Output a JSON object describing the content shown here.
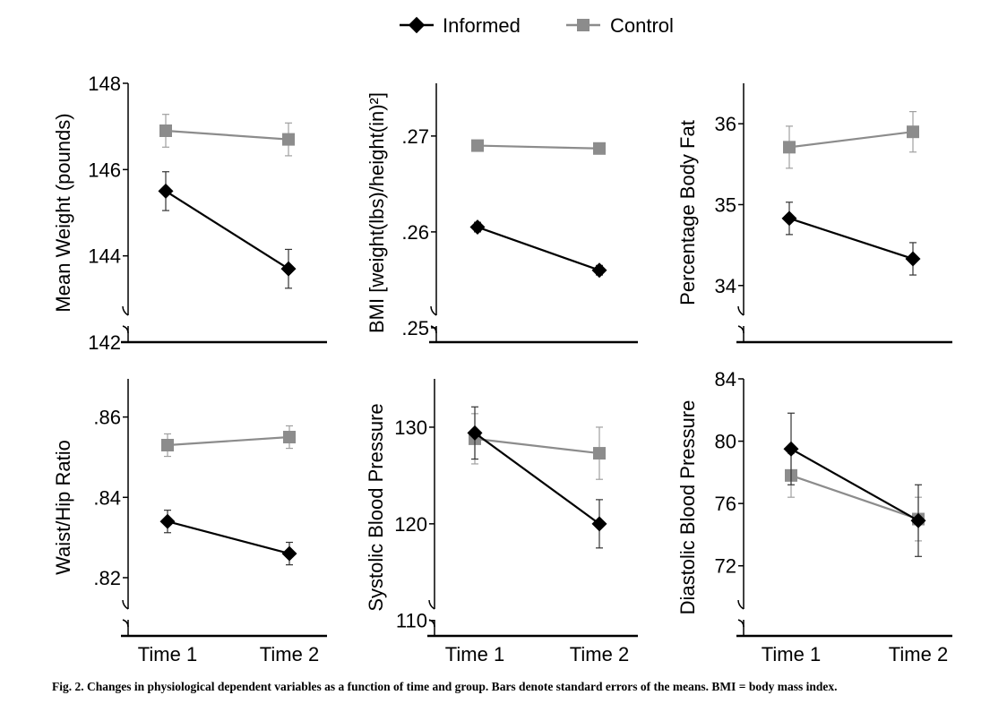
{
  "legend": {
    "placement": "top-center",
    "items": [
      {
        "label": "Informed",
        "color": "#000000",
        "marker": "diamond"
      },
      {
        "label": "Control",
        "color": "#8c8c8c",
        "marker": "square"
      }
    ]
  },
  "chart_data": [
    {
      "type": "line",
      "ylabel": "Mean Weight (pounds)",
      "categories": [
        "Time 1",
        "Time 2"
      ],
      "x_tick_labels_shown": false,
      "ylim": [
        142,
        148
      ],
      "y_ticks": [
        142,
        144,
        146,
        148
      ],
      "y_tick_labels": [
        "142",
        "144",
        "146",
        "148"
      ],
      "axis_break": true,
      "series": [
        {
          "name": "Informed",
          "values": [
            145.5,
            143.7
          ],
          "se": [
            0.45,
            0.45
          ]
        },
        {
          "name": "Control",
          "values": [
            146.9,
            146.7
          ],
          "se": [
            0.38,
            0.38
          ]
        }
      ]
    },
    {
      "type": "line",
      "ylabel": "BMI [weight(lbs)/height(in)²]",
      "categories": [
        "Time 1",
        "Time 2"
      ],
      "x_tick_labels_shown": false,
      "ylim": [
        0.2485,
        0.2755
      ],
      "y_ticks": [
        0.25,
        0.26,
        0.27
      ],
      "y_tick_labels": [
        ".25",
        ".26",
        ".27"
      ],
      "axis_break": true,
      "series": [
        {
          "name": "Informed",
          "values": [
            0.2605,
            0.256
          ],
          "se": [
            0.0005,
            0.0005
          ]
        },
        {
          "name": "Control",
          "values": [
            0.269,
            0.2687
          ],
          "se": [
            0.0005,
            0.0005
          ]
        }
      ]
    },
    {
      "type": "line",
      "ylabel": "Percentage Body Fat",
      "categories": [
        "Time 1",
        "Time 2"
      ],
      "x_tick_labels_shown": false,
      "ylim": [
        33.3,
        36.5
      ],
      "y_ticks": [
        34,
        35,
        36
      ],
      "y_tick_labels": [
        "34",
        "35",
        "36"
      ],
      "axis_break": true,
      "series": [
        {
          "name": "Informed",
          "values": [
            34.83,
            34.33
          ],
          "se": [
            0.2,
            0.2
          ]
        },
        {
          "name": "Control",
          "values": [
            35.71,
            35.9
          ],
          "se": [
            0.26,
            0.25
          ]
        }
      ]
    },
    {
      "type": "line",
      "ylabel": "Waist/Hip Ratio",
      "categories": [
        "Time 1",
        "Time 2"
      ],
      "x_tick_labels_shown": true,
      "ylim": [
        0.8055,
        0.8695
      ],
      "y_ticks": [
        0.82,
        0.84,
        0.86
      ],
      "y_tick_labels": [
        ".82",
        ".84",
        ".86"
      ],
      "axis_break": true,
      "series": [
        {
          "name": "Informed",
          "values": [
            0.834,
            0.826
          ],
          "se": [
            0.0028,
            0.0028
          ]
        },
        {
          "name": "Control",
          "values": [
            0.853,
            0.855
          ],
          "se": [
            0.0028,
            0.0028
          ]
        }
      ]
    },
    {
      "type": "line",
      "ylabel": "Systolic Blood Pressure",
      "categories": [
        "Time 1",
        "Time 2"
      ],
      "x_tick_labels_shown": true,
      "ylim": [
        108.4,
        135
      ],
      "y_ticks": [
        110,
        120,
        130
      ],
      "y_tick_labels": [
        "110",
        "120",
        "130"
      ],
      "axis_break": true,
      "series": [
        {
          "name": "Informed",
          "values": [
            129.4,
            120
          ],
          "se": [
            2.7,
            2.5
          ]
        },
        {
          "name": "Control",
          "values": [
            128.8,
            127.3
          ],
          "se": [
            2.6,
            2.7
          ]
        }
      ]
    },
    {
      "type": "line",
      "ylabel": "Diastolic Blood Pressure",
      "categories": [
        "Time 1",
        "Time 2"
      ],
      "x_tick_labels_shown": true,
      "ylim": [
        67.5,
        84
      ],
      "y_ticks": [
        72,
        76,
        80,
        84
      ],
      "y_tick_labels": [
        "72",
        "76",
        "80",
        "84"
      ],
      "axis_break": true,
      "series": [
        {
          "name": "Informed",
          "values": [
            79.5,
            74.9
          ],
          "se": [
            2.3,
            2.3
          ]
        },
        {
          "name": "Control",
          "values": [
            77.8,
            75
          ],
          "se": [
            1.4,
            1.4
          ]
        }
      ]
    }
  ],
  "caption": "Fig. 2.  Changes in physiological dependent variables as a function of time and group. Bars denote standard errors of the means. BMI = body mass index."
}
